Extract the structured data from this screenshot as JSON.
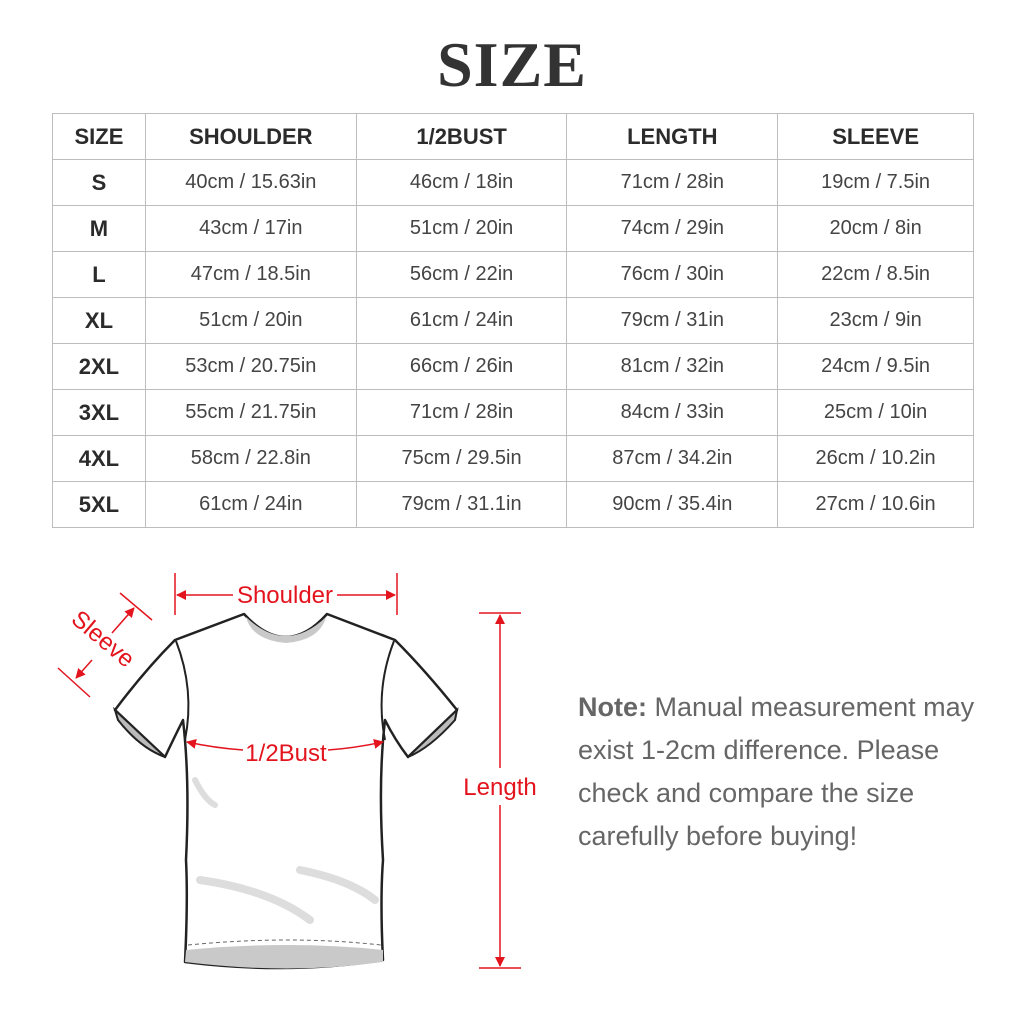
{
  "title": "SIZE",
  "table": {
    "headers": [
      "SIZE",
      "SHOULDER",
      "1/2BUST",
      "LENGTH",
      "SLEEVE"
    ],
    "rows": [
      [
        "S",
        "40cm / 15.63in",
        "46cm / 18in",
        "71cm / 28in",
        "19cm / 7.5in"
      ],
      [
        "M",
        "43cm / 17in",
        "51cm / 20in",
        "74cm / 29in",
        "20cm / 8in"
      ],
      [
        "L",
        "47cm / 18.5in",
        "56cm / 22in",
        "76cm / 30in",
        "22cm / 8.5in"
      ],
      [
        "XL",
        "51cm / 20in",
        "61cm / 24in",
        "79cm / 31in",
        "23cm / 9in"
      ],
      [
        "2XL",
        "53cm / 20.75in",
        "66cm / 26in",
        "81cm / 32in",
        "24cm / 9.5in"
      ],
      [
        "3XL",
        "55cm / 21.75in",
        "71cm / 28in",
        "84cm / 33in",
        "25cm / 10in"
      ],
      [
        "4XL",
        "58cm / 22.8in",
        "75cm / 29.5in",
        "87cm / 34.2in",
        "26cm / 10.2in"
      ],
      [
        "5XL",
        "61cm / 24in",
        "79cm / 31.1in",
        "90cm / 35.4in",
        "27cm / 10.6in"
      ]
    ]
  },
  "diagram": {
    "shoulder": "Shoulder",
    "sleeve": "Sleeve",
    "bust": "1/2Bust",
    "length": "Length",
    "accent": "#e3141e"
  },
  "note": {
    "label": "Note:",
    "text": " Manual measurement may exist 1-2cm difference. Please check and compare the size carefully before buying!"
  }
}
